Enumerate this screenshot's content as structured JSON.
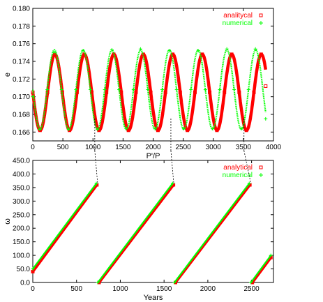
{
  "chart_data": [
    {
      "type": "scatter",
      "xlabel": "P'/P",
      "ylabel": "e",
      "xlim": [
        0,
        4000
      ],
      "ylim": [
        0.165,
        0.18
      ],
      "xticks": [
        0,
        500,
        1000,
        1500,
        2000,
        2500,
        3000,
        3500,
        4000
      ],
      "yticks": [
        0.166,
        0.168,
        0.17,
        0.172,
        0.174,
        0.176,
        0.178,
        0.18
      ],
      "ytick_labels": [
        "0.166",
        "0.168",
        "0.170",
        "0.172",
        "0.174",
        "0.176",
        "0.178",
        "0.180"
      ],
      "legend_position": "top-right",
      "grid": false,
      "series": [
        {
          "name": "analitycal",
          "color": "#ff0000",
          "marker": "open-square",
          "model": {
            "center": 0.1705,
            "amplitude": 0.0043,
            "period": 490,
            "start_value": 0.1705,
            "x_range": [
              0,
              3870
            ]
          },
          "points": [
            [
              0,
              0.1705
            ],
            [
              120,
              0.1662
            ],
            [
              245,
              0.1705
            ],
            [
              365,
              0.1748
            ],
            [
              490,
              0.1705
            ],
            [
              610,
              0.1662
            ],
            [
              735,
              0.1705
            ],
            [
              855,
              0.1748
            ],
            [
              980,
              0.1705
            ],
            [
              1100,
              0.1662
            ],
            [
              1225,
              0.1705
            ],
            [
              1345,
              0.1748
            ],
            [
              1470,
              0.1705
            ],
            [
              1590,
              0.1662
            ],
            [
              1715,
              0.1705
            ],
            [
              1835,
              0.1748
            ],
            [
              1960,
              0.1705
            ],
            [
              2080,
              0.1662
            ],
            [
              2205,
              0.1705
            ],
            [
              2325,
              0.1748
            ],
            [
              2450,
              0.1705
            ],
            [
              2570,
              0.1662
            ],
            [
              2695,
              0.1705
            ],
            [
              2815,
              0.1748
            ],
            [
              2940,
              0.1705
            ],
            [
              3060,
              0.1662
            ],
            [
              3185,
              0.1705
            ],
            [
              3305,
              0.1748
            ],
            [
              3430,
              0.1705
            ],
            [
              3550,
              0.1662
            ],
            [
              3675,
              0.1705
            ],
            [
              3795,
              0.1748
            ],
            [
              3870,
              0.1712
            ]
          ]
        },
        {
          "name": "numerical",
          "color": "#00ff00",
          "marker": "plus",
          "model": {
            "center": 0.1708,
            "amplitude": 0.0045,
            "period": 478,
            "start_value": 0.17,
            "x_range": [
              0,
              3870
            ]
          },
          "points": [
            [
              0,
              0.17
            ],
            [
              115,
              0.1663
            ],
            [
              240,
              0.1708
            ],
            [
              355,
              0.175
            ],
            [
              478,
              0.1708
            ],
            [
              595,
              0.1663
            ],
            [
              717,
              0.1708
            ],
            [
              835,
              0.1752
            ],
            [
              956,
              0.1708
            ],
            [
              1075,
              0.1663
            ],
            [
              1195,
              0.1708
            ],
            [
              1315,
              0.1753
            ],
            [
              1434,
              0.1708
            ],
            [
              1555,
              0.1664
            ],
            [
              1673,
              0.1708
            ],
            [
              1790,
              0.1754
            ],
            [
              1912,
              0.1708
            ],
            [
              2030,
              0.1664
            ],
            [
              2151,
              0.1708
            ],
            [
              2270,
              0.1752
            ],
            [
              2390,
              0.1708
            ],
            [
              2510,
              0.1664
            ],
            [
              2629,
              0.1708
            ],
            [
              2750,
              0.1752
            ],
            [
              2868,
              0.1708
            ],
            [
              2990,
              0.1664
            ],
            [
              3107,
              0.1708
            ],
            [
              3225,
              0.1754
            ],
            [
              3346,
              0.1708
            ],
            [
              3465,
              0.1664
            ],
            [
              3585,
              0.1708
            ],
            [
              3700,
              0.1754
            ],
            [
              3870,
              0.1675
            ]
          ]
        }
      ]
    },
    {
      "type": "scatter",
      "xlabel": "Years",
      "ylabel": "ω",
      "xlim": [
        0,
        2750
      ],
      "ylim": [
        0,
        450
      ],
      "xticks": [
        0,
        500,
        1000,
        1500,
        2000,
        2500
      ],
      "yticks": [
        0,
        50,
        100,
        150,
        200,
        250,
        300,
        350,
        400,
        450
      ],
      "ytick_labels": [
        "0.0",
        "50.0",
        "100.0",
        "150.0",
        "200.0",
        "250.0",
        "300.0",
        "350.0",
        "400.0",
        "450.0"
      ],
      "legend_position": "top-right",
      "grid": false,
      "series": [
        {
          "name": "analytical",
          "color": "#ff0000",
          "marker": "open-square",
          "points": [
            [
              0,
              40
            ],
            [
              732,
              360
            ],
            [
              757,
              0
            ],
            [
              1607,
              360
            ],
            [
              1630,
              0
            ],
            [
              2480,
              360
            ],
            [
              2508,
              0
            ],
            [
              2720,
              92
            ]
          ]
        },
        {
          "name": "numerical",
          "color": "#00ff00",
          "marker": "plus",
          "points": [
            [
              0,
              50
            ],
            [
              726,
              365
            ],
            [
              743,
              0
            ],
            [
              1597,
              365
            ],
            [
              1618,
              0
            ],
            [
              2473,
              365
            ],
            [
              2492,
              0
            ],
            [
              2720,
              100
            ]
          ]
        }
      ]
    }
  ],
  "links": [
    {
      "top_x": 1030,
      "bottom_x": 740
    },
    {
      "top_x": 2295,
      "bottom_x": 1610
    },
    {
      "top_x": 3510,
      "bottom_x": 2490
    }
  ]
}
